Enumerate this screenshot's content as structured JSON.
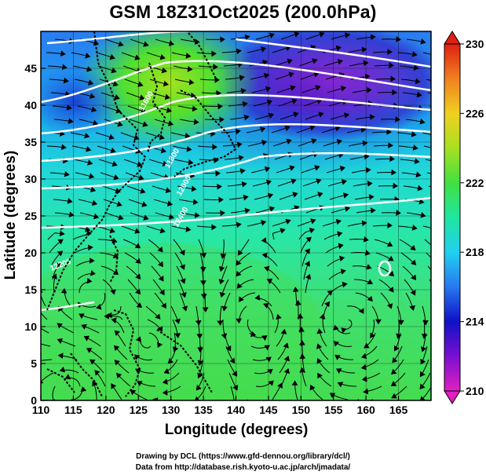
{
  "title": "GSM 18Z31Oct2025 (200.0hPa)",
  "xaxis": {
    "label": "Longitude (degrees)",
    "range": [
      110,
      170
    ],
    "ticks": [
      "110",
      "115",
      "120",
      "125",
      "130",
      "135",
      "140",
      "145",
      "150",
      "155",
      "160",
      "165"
    ]
  },
  "yaxis": {
    "label": "Latitude  (degrees)",
    "range": [
      0,
      50
    ],
    "ticks": [
      "0",
      "5",
      "10",
      "15",
      "20",
      "25",
      "30",
      "35",
      "40",
      "45"
    ]
  },
  "colorbar": {
    "min": 210,
    "max": 230,
    "ticks": [
      "210",
      "214",
      "218",
      "222",
      "226",
      "230"
    ],
    "colors": [
      "#e020c0",
      "#7a10d0",
      "#1010c8",
      "#2878f0",
      "#20d0f0",
      "#20e6a0",
      "#40e040",
      "#a8e020",
      "#f0d020",
      "#f08020",
      "#e02010"
    ]
  },
  "credit_lines": [
    "Drawing by DCL (https://www.gfd-dennou.org/library/dcl/)",
    "Data from http://database.rish.kyoto-u.ac.jp/arch/jmadata/"
  ],
  "contour_labels": [
    "11600",
    "11800",
    "12000",
    "12200",
    "12400"
  ],
  "chart_data": {
    "type": "heatmap",
    "title": "GSM 18Z31Oct2025 (200.0hPa)",
    "xlabel": "Longitude (degrees)",
    "ylabel": "Latitude  (degrees)",
    "xlim": [
      110,
      170
    ],
    "ylim": [
      0,
      50
    ],
    "colorbar_range": [
      210,
      230
    ],
    "overlays": [
      "streamlines",
      "geopotential height contours (white)",
      "coastlines (black)"
    ],
    "field_samples": [
      {
        "lon": 112,
        "lat": 47,
        "value": 215
      },
      {
        "lon": 118,
        "lat": 40,
        "value": 217
      },
      {
        "lon": 128,
        "lat": 38,
        "value": 223
      },
      {
        "lon": 138,
        "lat": 46,
        "value": 222
      },
      {
        "lon": 158,
        "lat": 43,
        "value": 211
      },
      {
        "lon": 150,
        "lat": 36,
        "value": 216
      },
      {
        "lon": 140,
        "lat": 30,
        "value": 219
      },
      {
        "lon": 160,
        "lat": 28,
        "value": 220
      },
      {
        "lon": 130,
        "lat": 20,
        "value": 221
      },
      {
        "lon": 150,
        "lat": 15,
        "value": 222
      },
      {
        "lon": 120,
        "lat": 8,
        "value": 223
      },
      {
        "lon": 160,
        "lat": 5,
        "value": 222
      }
    ]
  }
}
